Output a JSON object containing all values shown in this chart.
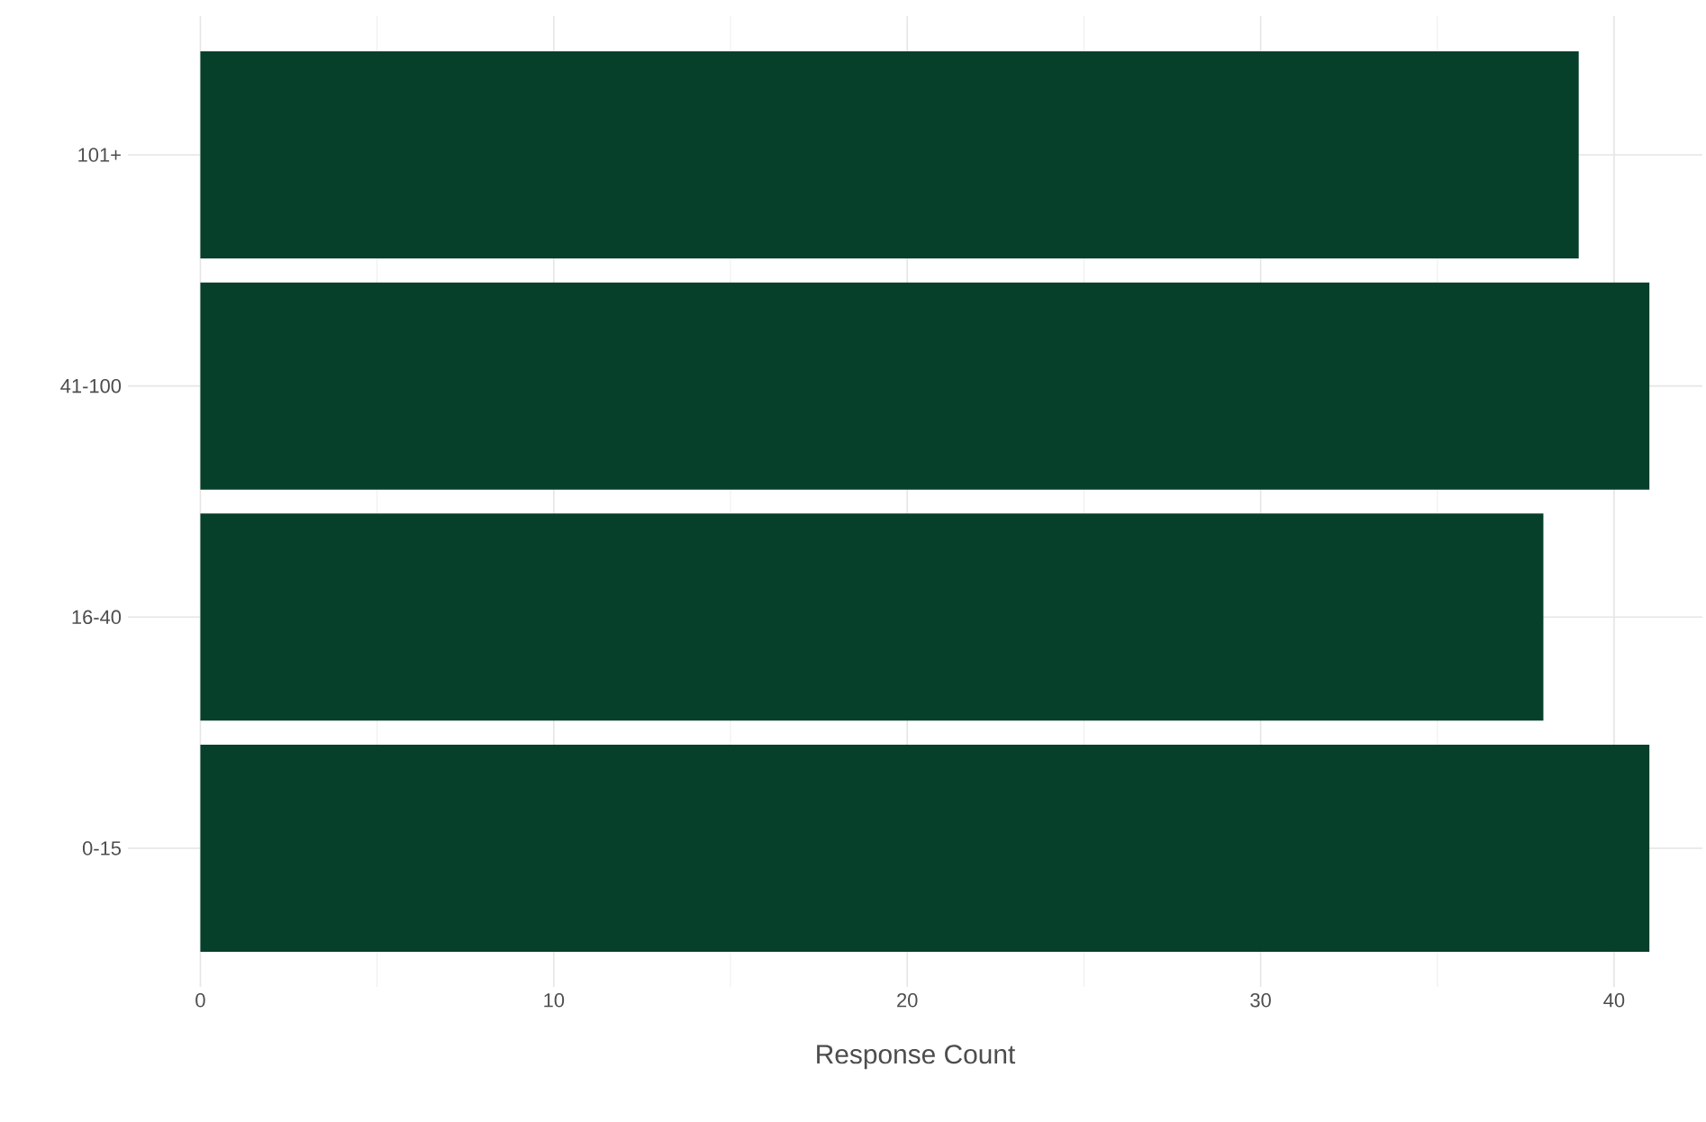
{
  "chart_data": {
    "type": "bar",
    "orientation": "horizontal",
    "categories": [
      "101+",
      "41-100",
      "16-40",
      "0-15"
    ],
    "values": [
      39,
      41,
      38,
      41
    ],
    "color": "#063f2a",
    "xlabel": "Response Count",
    "xlim": [
      -2.05,
      42.5
    ],
    "xticks": [
      0,
      10,
      20,
      30,
      40
    ],
    "grid": true
  }
}
